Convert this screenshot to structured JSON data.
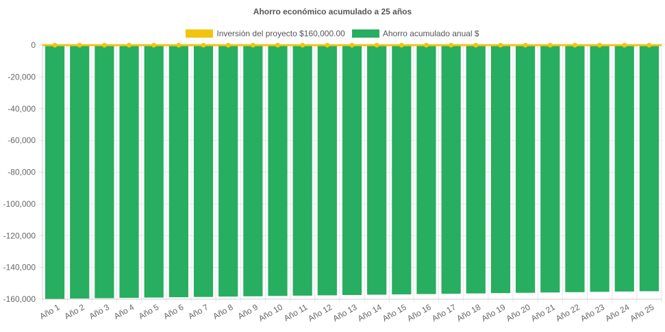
{
  "chart_data": {
    "type": "bar",
    "title": "Ahorro económico acumulado a 25 años",
    "categories": [
      "Año 1",
      "Año 2",
      "Año 3",
      "Año 4",
      "Año 5",
      "Año 6",
      "Año 7",
      "Año 8",
      "Año 9",
      "Año 10",
      "Año 11",
      "Año 12",
      "Año 13",
      "Año 14",
      "Año 15",
      "Año 16",
      "Año 17",
      "Año 18",
      "Año 19",
      "Año 20",
      "Año 21",
      "Año 22",
      "Año 23",
      "Año 24",
      "Año 25"
    ],
    "series": [
      {
        "name": "Inversión del proyecto $160,000.00",
        "type": "line",
        "color": "#f2c40f",
        "values": [
          0,
          0,
          0,
          0,
          0,
          0,
          0,
          0,
          0,
          0,
          0,
          0,
          0,
          0,
          0,
          0,
          0,
          0,
          0,
          0,
          0,
          0,
          0,
          0,
          0
        ]
      },
      {
        "name": "Ahorro acumulado anual $",
        "type": "bar",
        "color": "#27ae60",
        "values": [
          -159800,
          -159600,
          -159400,
          -159200,
          -159000,
          -158800,
          -158600,
          -158400,
          -158200,
          -158000,
          -157800,
          -157600,
          -157400,
          -157200,
          -157000,
          -156800,
          -156600,
          -156400,
          -156200,
          -156000,
          -155800,
          -155600,
          -155400,
          -155200,
          -155000
        ]
      }
    ],
    "ylim": [
      -160000,
      0
    ],
    "yticks": [
      0,
      -20000,
      -40000,
      -60000,
      -80000,
      -100000,
      -120000,
      -140000,
      -160000
    ],
    "ytick_labels": [
      "0",
      "-20,000",
      "-40,000",
      "-60,000",
      "-80,000",
      "-100,000",
      "-120,000",
      "-140,000",
      "-160,000"
    ],
    "grid": true,
    "legend_position": "top"
  }
}
